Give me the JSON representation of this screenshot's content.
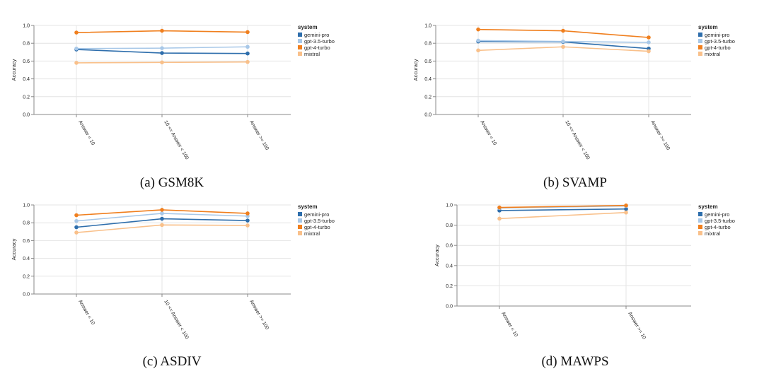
{
  "chart_data": [
    {
      "type": "line",
      "caption": "(a) GSM8K",
      "ylabel": "Accuracy",
      "ylim": [
        0,
        1
      ],
      "yticks": [
        "0.0",
        "0.2",
        "0.4",
        "0.6",
        "0.8",
        "1.0"
      ],
      "categories": [
        "Answer < 10",
        "10 <= Answer < 100",
        "Answer >= 100"
      ],
      "legend_title": "system",
      "series": [
        {
          "name": "gemini-pro",
          "color": "#2e6eac",
          "values": [
            0.73,
            0.69,
            0.685
          ]
        },
        {
          "name": "gpt-3.5-turbo",
          "color": "#a8c8e8",
          "values": [
            0.74,
            0.745,
            0.76
          ]
        },
        {
          "name": "gpt-4-turbo",
          "color": "#f07f1e",
          "values": [
            0.92,
            0.94,
            0.925
          ]
        },
        {
          "name": "mixtral",
          "color": "#f9c08a",
          "values": [
            0.58,
            0.585,
            0.59
          ]
        }
      ]
    },
    {
      "type": "line",
      "caption": "(b) SVAMP",
      "ylabel": "Accuracy",
      "ylim": [
        0,
        1
      ],
      "yticks": [
        "0.0",
        "0.2",
        "0.4",
        "0.6",
        "0.8",
        "1.0"
      ],
      "categories": [
        "Answer < 10",
        "10 <= Answer < 100",
        "Answer >= 100"
      ],
      "legend_title": "system",
      "series": [
        {
          "name": "gemini-pro",
          "color": "#2e6eac",
          "values": [
            0.82,
            0.815,
            0.74
          ]
        },
        {
          "name": "gpt-3.5-turbo",
          "color": "#a8c8e8",
          "values": [
            0.83,
            0.82,
            0.81
          ]
        },
        {
          "name": "gpt-4-turbo",
          "color": "#f07f1e",
          "values": [
            0.955,
            0.94,
            0.865
          ]
        },
        {
          "name": "mixtral",
          "color": "#f9c08a",
          "values": [
            0.72,
            0.76,
            0.71
          ]
        }
      ]
    },
    {
      "type": "line",
      "caption": "(c) ASDIV",
      "ylabel": "Accuracy",
      "ylim": [
        0,
        1
      ],
      "yticks": [
        "0.0",
        "0.2",
        "0.4",
        "0.6",
        "0.8",
        "1.0"
      ],
      "categories": [
        "Answer < 10",
        "10 <= Answer < 100",
        "Answer >= 100"
      ],
      "legend_title": "system",
      "series": [
        {
          "name": "gemini-pro",
          "color": "#2e6eac",
          "values": [
            0.75,
            0.845,
            0.825
          ]
        },
        {
          "name": "gpt-3.5-turbo",
          "color": "#a8c8e8",
          "values": [
            0.82,
            0.905,
            0.875
          ]
        },
        {
          "name": "gpt-4-turbo",
          "color": "#f07f1e",
          "values": [
            0.885,
            0.945,
            0.905
          ]
        },
        {
          "name": "mixtral",
          "color": "#f9c08a",
          "values": [
            0.69,
            0.775,
            0.77
          ]
        }
      ]
    },
    {
      "type": "line",
      "caption": "(d) MAWPS",
      "ylabel": "Accuracy",
      "ylim": [
        0,
        1
      ],
      "yticks": [
        "0.0",
        "0.2",
        "0.4",
        "0.6",
        "0.8",
        "1.0"
      ],
      "categories": [
        "Answer < 10",
        "Answer >= 10"
      ],
      "legend_title": "system",
      "series": [
        {
          "name": "gemini-pro",
          "color": "#2e6eac",
          "values": [
            0.945,
            0.96
          ]
        },
        {
          "name": "gpt-3.5-turbo",
          "color": "#a8c8e8",
          "values": [
            0.97,
            0.99
          ]
        },
        {
          "name": "gpt-4-turbo",
          "color": "#f07f1e",
          "values": [
            0.975,
            0.995
          ]
        },
        {
          "name": "mixtral",
          "color": "#f9c08a",
          "values": [
            0.865,
            0.925
          ]
        }
      ]
    }
  ]
}
